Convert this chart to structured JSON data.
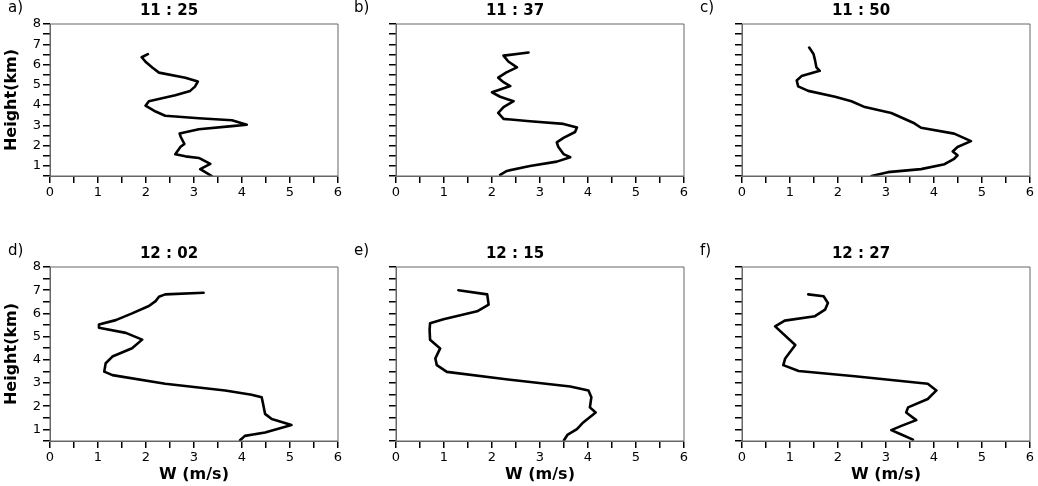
{
  "chart_data": [
    {
      "type": "line",
      "title": "11 : 25",
      "ylabel": "Height(km)",
      "annotations": [
        "a)"
      ],
      "grid": false,
      "marker": "none",
      "xlim": [
        0,
        6
      ],
      "xticks": [
        0,
        {
          "value": 0.5,
          "label": null
        },
        1,
        {
          "value": 1.5,
          "label": null
        },
        2,
        {
          "value": 2.5,
          "label": null
        },
        3,
        {
          "value": 3.5,
          "label": null
        },
        4,
        {
          "value": 4.5,
          "label": null
        },
        5,
        {
          "value": 5.5,
          "label": null
        },
        6
      ],
      "ylim": [
        0.5,
        8
      ],
      "yticks": [
        {
          "value": 0.5,
          "label": null
        },
        1,
        {
          "value": 1.5,
          "label": null
        },
        2,
        {
          "value": 2.5,
          "label": null
        },
        3,
        {
          "value": 3.5,
          "label": null
        },
        4,
        {
          "value": 4.5,
          "label": null
        },
        5,
        {
          "value": 5.5,
          "label": null
        },
        6,
        {
          "value": 6.5,
          "label": null
        },
        7,
        {
          "value": 7.5,
          "label": null
        },
        8
      ],
      "series": [
        {
          "color": "#000000",
          "x": [
            3.37,
            3.2,
            3.13,
            3.34,
            3.1,
            2.82,
            2.61,
            2.72,
            2.8,
            2.72,
            2.7,
            3.1,
            3.79,
            4.1,
            3.79,
            3.1,
            2.4,
            2.2,
            1.99,
            2.06,
            2.61,
            2.92,
            3.02,
            3.08,
            2.82,
            2.27,
            2.13,
            1.99,
            1.91,
            2.04
          ],
          "values": [
            0.5,
            0.74,
            0.84,
            1.1,
            1.39,
            1.47,
            1.57,
            1.94,
            2.08,
            2.45,
            2.6,
            2.81,
            2.96,
            3.03,
            3.25,
            3.35,
            3.47,
            3.68,
            3.97,
            4.19,
            4.48,
            4.7,
            4.91,
            5.16,
            5.35,
            5.6,
            5.85,
            6.14,
            6.36,
            6.51
          ]
        }
      ]
    },
    {
      "type": "line",
      "title": "11 : 37",
      "annotations": [
        "b)"
      ],
      "grid": false,
      "marker": "none",
      "tick_labels": "x",
      "xlim": [
        0,
        6
      ],
      "xticks": [
        0,
        {
          "value": 0.5,
          "label": null
        },
        1,
        {
          "value": 1.5,
          "label": null
        },
        2,
        {
          "value": 2.5,
          "label": null
        },
        3,
        {
          "value": 3.5,
          "label": null
        },
        4,
        {
          "value": 4.5,
          "label": null
        },
        5,
        {
          "value": 5.5,
          "label": null
        },
        6
      ],
      "ylim": [
        0.5,
        8
      ],
      "yticks": [
        {
          "value": 0.5,
          "label": null
        },
        1,
        {
          "value": 1.5,
          "label": null
        },
        2,
        {
          "value": 2.5,
          "label": null
        },
        3,
        {
          "value": 3.5,
          "label": null
        },
        4,
        {
          "value": 4.5,
          "label": null
        },
        5,
        {
          "value": 5.5,
          "label": null
        },
        6,
        {
          "value": 6.5,
          "label": null
        },
        7,
        {
          "value": 7.5,
          "label": null
        },
        8
      ],
      "series": [
        {
          "color": "#000000",
          "x": [
            2.17,
            2.31,
            2.79,
            3.35,
            3.63,
            3.49,
            3.38,
            3.35,
            3.49,
            3.73,
            3.77,
            3.49,
            2.79,
            2.24,
            2.13,
            2.24,
            2.45,
            2.17,
            2.0,
            2.17,
            2.38,
            2.24,
            2.13,
            2.3,
            2.52,
            2.34,
            2.24,
            2.76
          ],
          "values": [
            0.56,
            0.75,
            0.99,
            1.21,
            1.43,
            1.58,
            1.94,
            2.16,
            2.38,
            2.67,
            2.89,
            3.07,
            3.2,
            3.32,
            3.61,
            3.9,
            4.19,
            4.41,
            4.63,
            4.77,
            4.94,
            5.13,
            5.35,
            5.61,
            5.86,
            6.15,
            6.44,
            6.59
          ]
        }
      ]
    },
    {
      "type": "line",
      "title": "11 : 50",
      "annotations": [
        "c)"
      ],
      "grid": false,
      "marker": "none",
      "tick_labels": "x",
      "xlim": [
        0,
        6
      ],
      "xticks": [
        0,
        {
          "value": 0.5,
          "label": null
        },
        1,
        {
          "value": 1.5,
          "label": null
        },
        2,
        {
          "value": 2.5,
          "label": null
        },
        3,
        {
          "value": 3.5,
          "label": null
        },
        4,
        {
          "value": 4.5,
          "label": null
        },
        5,
        {
          "value": 5.5,
          "label": null
        },
        6
      ],
      "ylim": [
        0.5,
        8
      ],
      "yticks": [
        {
          "value": 0.5,
          "label": null
        },
        1,
        {
          "value": 1.5,
          "label": null
        },
        2,
        {
          "value": 2.5,
          "label": null
        },
        3,
        {
          "value": 3.5,
          "label": null
        },
        4,
        {
          "value": 4.5,
          "label": null
        },
        5,
        {
          "value": 5.5,
          "label": null
        },
        6,
        {
          "value": 6.5,
          "label": null
        },
        7,
        {
          "value": 7.5,
          "label": null
        },
        8
      ],
      "series": [
        {
          "color": "#000000",
          "x": [
            2.7,
            3.04,
            3.73,
            4.22,
            4.42,
            4.49,
            4.39,
            4.49,
            4.77,
            4.42,
            3.73,
            3.59,
            3.11,
            2.56,
            2.28,
            1.94,
            1.38,
            1.17,
            1.14,
            1.24,
            1.62,
            1.55,
            1.52,
            1.49,
            1.4
          ],
          "values": [
            0.5,
            0.69,
            0.84,
            1.08,
            1.35,
            1.52,
            1.71,
            1.93,
            2.22,
            2.59,
            2.88,
            3.1,
            3.61,
            3.9,
            4.19,
            4.41,
            4.7,
            4.92,
            5.21,
            5.43,
            5.69,
            5.86,
            6.23,
            6.52,
            6.84
          ]
        }
      ]
    },
    {
      "type": "line",
      "title": "12 : 02",
      "xlabel": "W (m/s)",
      "ylabel": "Height(km)",
      "annotations": [
        "d)"
      ],
      "grid": false,
      "marker": "none",
      "xlim": [
        0,
        6
      ],
      "xticks": [
        0,
        {
          "value": 0.5,
          "label": null
        },
        1,
        {
          "value": 1.5,
          "label": null
        },
        2,
        {
          "value": 2.5,
          "label": null
        },
        3,
        {
          "value": 3.5,
          "label": null
        },
        4,
        {
          "value": 4.5,
          "label": null
        },
        5,
        {
          "value": 5.5,
          "label": null
        },
        6
      ],
      "ylim": [
        0.5,
        8
      ],
      "yticks": [
        {
          "value": 0.5,
          "label": null
        },
        1,
        {
          "value": 1.5,
          "label": null
        },
        2,
        {
          "value": 2.5,
          "label": null
        },
        3,
        {
          "value": 3.5,
          "label": null
        },
        4,
        {
          "value": 4.5,
          "label": null
        },
        5,
        {
          "value": 5.5,
          "label": null
        },
        6,
        {
          "value": 6.5,
          "label": null
        },
        7,
        {
          "value": 7.5,
          "label": null
        },
        8
      ],
      "series": [
        {
          "color": "#000000",
          "x": [
            3.96,
            4.06,
            4.48,
            5.03,
            4.62,
            4.48,
            4.44,
            4.41,
            4.2,
            3.65,
            2.4,
            1.3,
            1.13,
            1.16,
            1.3,
            1.71,
            1.92,
            1.58,
            1.02,
            1.02,
            1.37,
            1.71,
            2.06,
            2.2,
            2.27,
            2.4,
            3.2
          ],
          "values": [
            0.53,
            0.72,
            0.87,
            1.19,
            1.45,
            1.67,
            2.1,
            2.39,
            2.49,
            2.68,
            2.97,
            3.34,
            3.49,
            3.85,
            4.14,
            4.5,
            4.87,
            5.16,
            5.38,
            5.52,
            5.71,
            6.0,
            6.32,
            6.53,
            6.72,
            6.82,
            6.89
          ]
        }
      ]
    },
    {
      "type": "line",
      "title": "12 : 15",
      "xlabel": "W (m/s)",
      "annotations": [
        "e)"
      ],
      "grid": false,
      "marker": "none",
      "tick_labels": "x",
      "xlim": [
        0,
        6
      ],
      "xticks": [
        0,
        {
          "value": 0.5,
          "label": null
        },
        1,
        {
          "value": 1.5,
          "label": null
        },
        2,
        {
          "value": 2.5,
          "label": null
        },
        3,
        {
          "value": 3.5,
          "label": null
        },
        4,
        {
          "value": 4.5,
          "label": null
        },
        5,
        {
          "value": 5.5,
          "label": null
        },
        6
      ],
      "ylim": [
        0.5,
        8
      ],
      "yticks": [
        {
          "value": 0.5,
          "label": null
        },
        1,
        {
          "value": 1.5,
          "label": null
        },
        2,
        {
          "value": 2.5,
          "label": null
        },
        3,
        {
          "value": 3.5,
          "label": null
        },
        4,
        {
          "value": 4.5,
          "label": null
        },
        5,
        {
          "value": 5.5,
          "label": null
        },
        6,
        {
          "value": 6.5,
          "label": null
        },
        7,
        {
          "value": 7.5,
          "label": null
        },
        8
      ],
      "series": [
        {
          "color": "#000000",
          "x": [
            3.5,
            3.57,
            3.77,
            3.9,
            4.16,
            4.04,
            4.07,
            4.01,
            3.63,
            2.38,
            1.06,
            0.85,
            0.82,
            0.92,
            0.71,
            0.7,
            0.71,
            0.99,
            1.69,
            1.93,
            1.9,
            1.3
          ],
          "values": [
            0.53,
            0.76,
            1.01,
            1.3,
            1.73,
            1.95,
            2.39,
            2.68,
            2.85,
            3.14,
            3.48,
            3.77,
            4.06,
            4.49,
            4.86,
            5.29,
            5.58,
            5.75,
            6.09,
            6.38,
            6.82,
            7.0
          ]
        }
      ]
    },
    {
      "type": "line",
      "title": "12 : 27",
      "xlabel": "W (m/s)",
      "annotations": [
        "f)"
      ],
      "grid": false,
      "marker": "none",
      "tick_labels": "x",
      "xlim": [
        0,
        6
      ],
      "xticks": [
        0,
        {
          "value": 0.5,
          "label": null
        },
        1,
        {
          "value": 1.5,
          "label": null
        },
        2,
        {
          "value": 2.5,
          "label": null
        },
        3,
        {
          "value": 3.5,
          "label": null
        },
        4,
        {
          "value": 4.5,
          "label": null
        },
        5,
        {
          "value": 5.5,
          "label": null
        },
        6
      ],
      "ylim": [
        0.5,
        8
      ],
      "yticks": [
        {
          "value": 0.5,
          "label": null
        },
        1,
        {
          "value": 1.5,
          "label": null
        },
        2,
        {
          "value": 2.5,
          "label": null
        },
        3,
        {
          "value": 3.5,
          "label": null
        },
        4,
        {
          "value": 4.5,
          "label": null
        },
        5,
        {
          "value": 5.5,
          "label": null
        },
        6,
        {
          "value": 6.5,
          "label": null
        },
        7,
        {
          "value": 7.5,
          "label": null
        },
        8
      ],
      "series": [
        {
          "color": "#000000",
          "x": [
            3.56,
            3.32,
            3.11,
            3.32,
            3.63,
            3.42,
            3.46,
            3.87,
            4.05,
            3.87,
            2.35,
            1.18,
            0.86,
            0.9,
            1.11,
            0.69,
            0.89,
            1.52,
            1.73,
            1.79,
            1.7,
            1.38
          ],
          "values": [
            0.56,
            0.78,
            0.97,
            1.15,
            1.4,
            1.73,
            1.95,
            2.31,
            2.68,
            2.97,
            3.29,
            3.52,
            3.77,
            4.06,
            4.64,
            5.44,
            5.69,
            5.88,
            6.16,
            6.45,
            6.74,
            6.82
          ]
        }
      ]
    }
  ]
}
